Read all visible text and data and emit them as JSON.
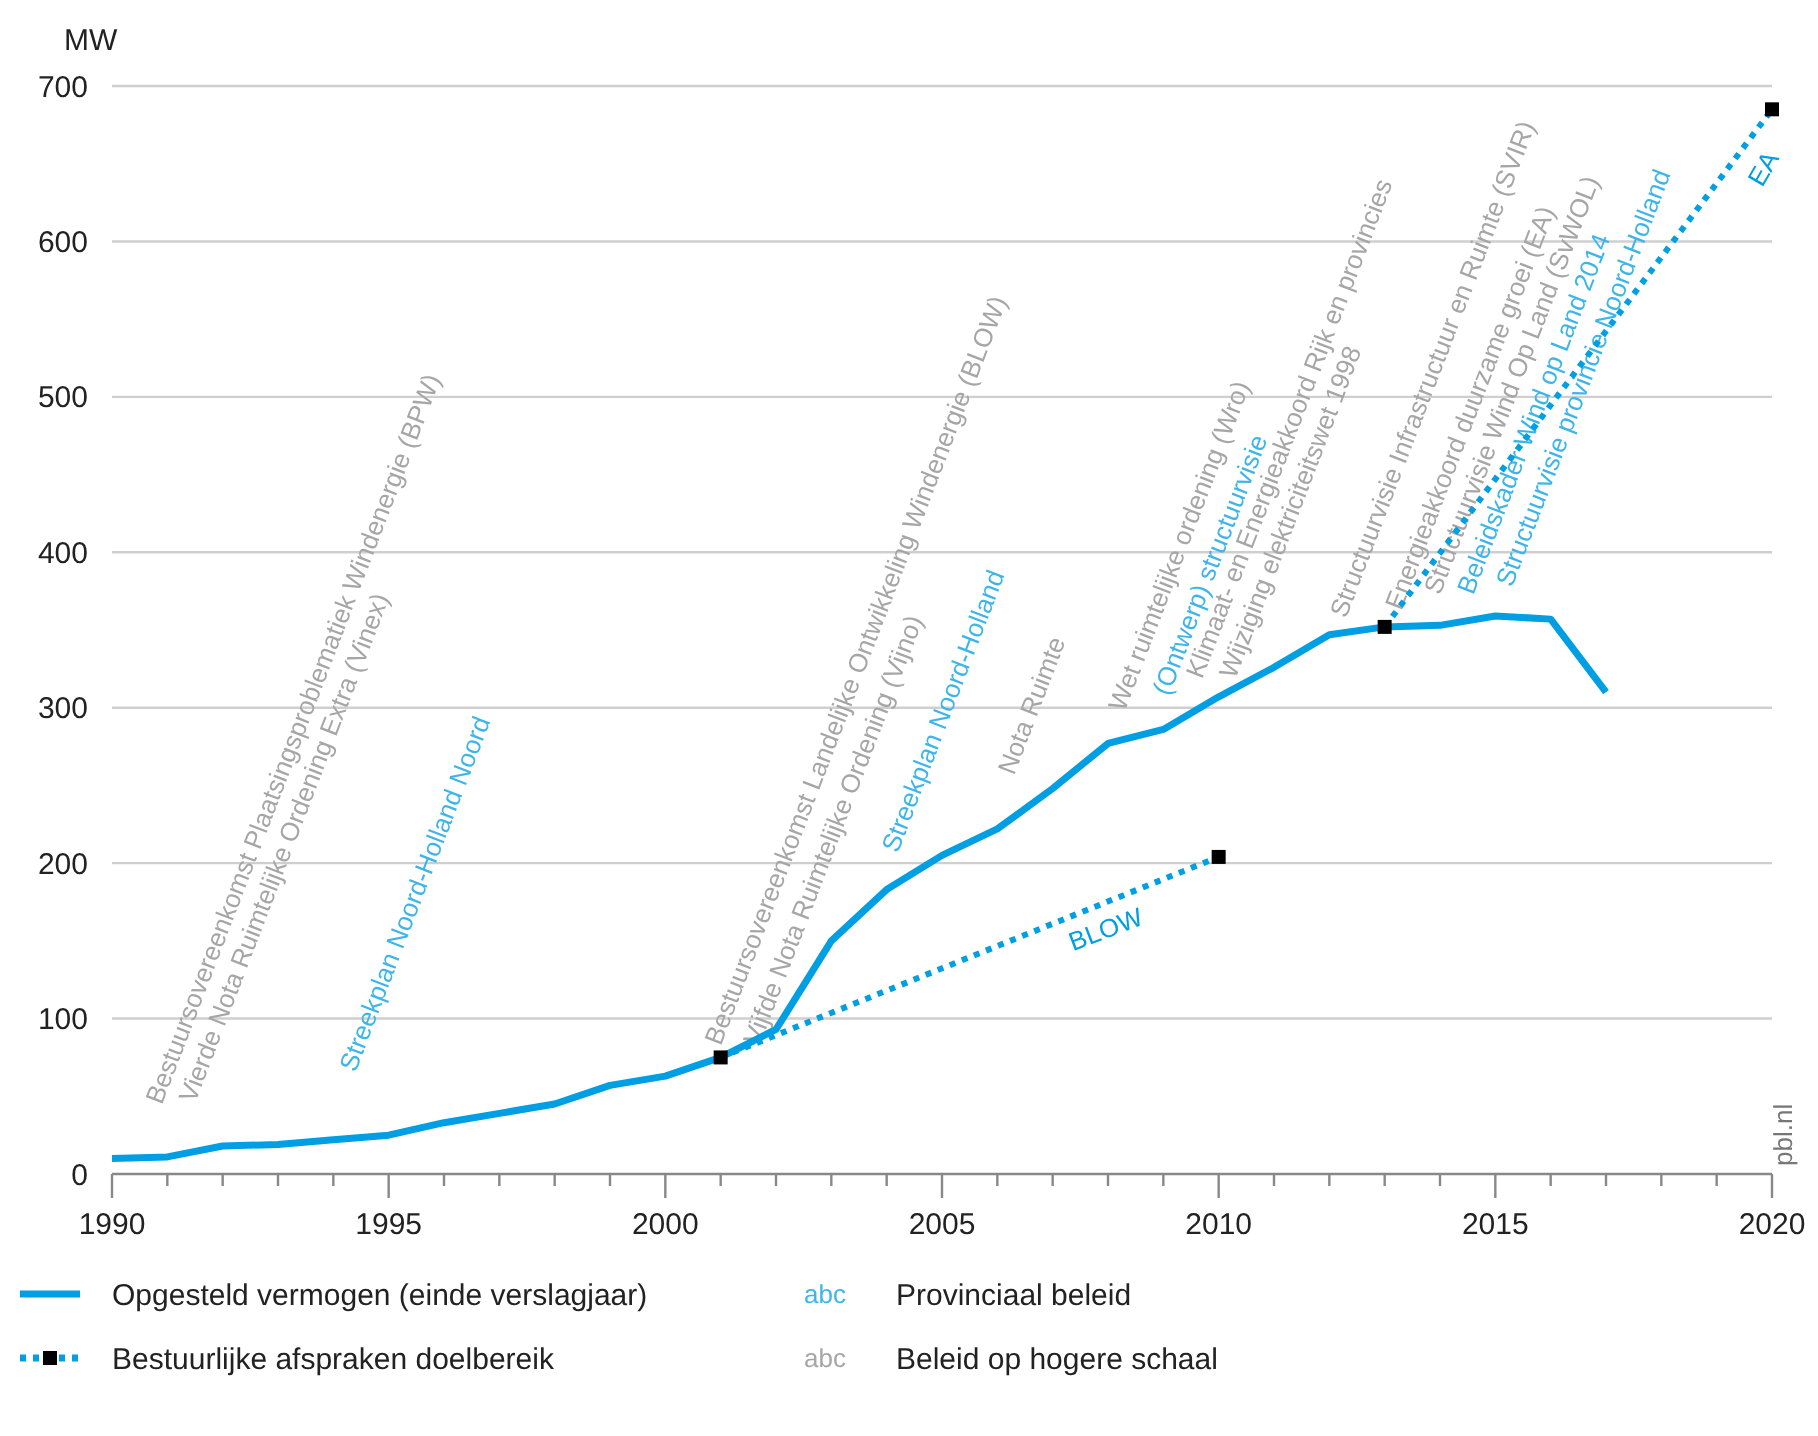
{
  "chart_data": {
    "type": "line",
    "ylabel": "MW",
    "xlim": [
      1990,
      2020
    ],
    "xticks": [
      1990,
      {
        "value": 1991,
        "label": null
      },
      {
        "value": 1992,
        "label": null
      },
      {
        "value": 1993,
        "label": null
      },
      {
        "value": 1994,
        "label": null
      },
      1995,
      {
        "value": 1996,
        "label": null
      },
      {
        "value": 1997,
        "label": null
      },
      {
        "value": 1998,
        "label": null
      },
      {
        "value": 1999,
        "label": null
      },
      2000,
      {
        "value": 2001,
        "label": null
      },
      {
        "value": 2002,
        "label": null
      },
      {
        "value": 2003,
        "label": null
      },
      {
        "value": 2004,
        "label": null
      },
      2005,
      {
        "value": 2006,
        "label": null
      },
      {
        "value": 2007,
        "label": null
      },
      {
        "value": 2008,
        "label": null
      },
      {
        "value": 2009,
        "label": null
      },
      2010,
      {
        "value": 2011,
        "label": null
      },
      {
        "value": 2012,
        "label": null
      },
      {
        "value": 2013,
        "label": null
      },
      {
        "value": 2014,
        "label": null
      },
      2015,
      {
        "value": 2016,
        "label": null
      },
      {
        "value": 2017,
        "label": null
      },
      {
        "value": 2018,
        "label": null
      },
      {
        "value": 2019,
        "label": null
      },
      2020
    ],
    "ylim": [
      0,
      700
    ],
    "yticks": [
      0,
      100,
      200,
      300,
      400,
      500,
      600,
      700
    ],
    "grid": "y",
    "legend": "bottom",
    "series": [
      {
        "name": "Opgesteld vermogen (einde verslagjaar)",
        "color": "#009fe3",
        "line_style": "solid",
        "marker": "none",
        "x": [
          1990,
          1991,
          1992,
          1993,
          1994,
          1995,
          1996,
          1997,
          1998,
          1999,
          2000,
          2001,
          2002,
          2003,
          2004,
          2005,
          2006,
          2007,
          2008,
          2009,
          2010,
          2011,
          2012,
          2013,
          2014,
          2015,
          2016,
          2017
        ],
        "values": [
          10,
          11,
          18,
          19,
          22,
          25,
          33,
          39,
          45,
          57,
          63,
          75,
          93,
          150,
          183,
          205,
          222,
          248,
          277,
          286,
          307,
          326,
          347,
          352,
          353,
          359,
          357,
          310
        ]
      },
      {
        "name": "Bestuurlijke afspraken doelbereik",
        "color": "#009fe3",
        "line_style": "dotted",
        "marker": "square",
        "x": [
          2001,
          2010
        ],
        "values": [
          75,
          204
        ]
      },
      {
        "color": "#009fe3",
        "line_style": "dotted",
        "marker": "square",
        "x": [
          2013,
          2020
        ],
        "values": [
          352,
          685
        ]
      }
    ],
    "annotations": [
      "Bestuursovereenkomst Plaatsingsproblematiek Windenergie (BPW)",
      "Vierde Nota Ruimtelijke Ordening Extra (Vinex)",
      "Streekplan Noord-Holland Noord",
      "Bestuursovereenkomst Landelijke Ontwikkeling Windenergie (BLOW)",
      "Vijfde Nota Ruimtelijke Ordening (Vijno)",
      "Streekplan Noord-Holland",
      "Nota Ruimte",
      "Wet ruimtelijke ordening (Wro)",
      "(Ontwerp) structuurvisie",
      "Klimaat- en Energieakkoord Rijk en provincies",
      "Wijziging elektriciteitswet 1998",
      "Structuurvisie Infrastructuur en Ruimte (SVIR)",
      "Energieakkoord duurzame groei (EA)",
      "Structuurvisie Wind Op Land (SvWOL)",
      "Beleidskader Wind op Land 2014",
      "Structuurvisie provincie Noord-Holland",
      {
        "text": "BLOW",
        "x": 2007.8,
        "y": 172
      },
      {
        "text": "EA",
        "x": 2019.4,
        "y": 656
      },
      "pbl.nl",
      "abc",
      "Provinciaal beleid",
      "abc",
      "Beleid op hogere schaal"
    ]
  }
}
